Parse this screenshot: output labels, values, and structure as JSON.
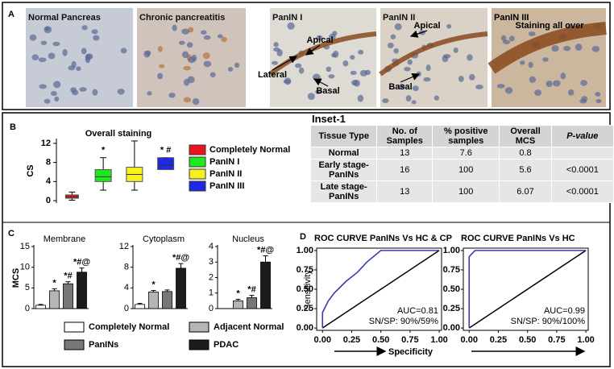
{
  "panel_labels": [
    "A",
    "B",
    "C",
    "D"
  ],
  "panel_a": {
    "images": [
      {
        "label": "Normal Pancreas"
      },
      {
        "label": "Chronic pancreatitis"
      },
      {
        "label": "PanIN I",
        "annotations": [
          "Apical",
          "Lateral",
          "Basal"
        ]
      },
      {
        "label": "PanIN II",
        "annotations": [
          "Apical",
          "Basal"
        ]
      },
      {
        "label": "PanIN III",
        "annotations": [
          "Staining all over"
        ]
      }
    ]
  },
  "table": {
    "title": "Inset-1",
    "header": [
      "Tissue Type",
      "No. of Samples",
      "% positive samples",
      "Overall MCS",
      "P-value"
    ],
    "rows": [
      [
        "Normal",
        "13",
        "7.6",
        "0.8",
        null
      ],
      [
        "Early stage-PanINs",
        "16",
        "100",
        "5.6",
        "<0.0001"
      ],
      [
        "Late stage-PanINs",
        "13",
        "100",
        "6.07",
        "<0.0001"
      ]
    ]
  },
  "chart_data": [
    {
      "type": "box",
      "title": "Overall staining",
      "ylabel": "CS",
      "categories": [
        "Completely Normal",
        "PanIN I",
        "PanIN II",
        "PanIN III"
      ],
      "colors": [
        "#e8141b",
        "#1ee81e",
        "#f5f01e",
        "#1e28e6"
      ],
      "stats": [
        {
          "min": 0.1,
          "q1": 0.5,
          "median": 0.8,
          "q3": 1.2,
          "max": 1.8
        },
        {
          "min": 2.2,
          "q1": 4,
          "median": 5,
          "q3": 6.5,
          "max": 9
        },
        {
          "min": 2.2,
          "q1": 4,
          "median": 5.5,
          "q3": 7,
          "max": 12.5
        },
        {
          "min": 6.5,
          "q1": 6.5,
          "median": 7.5,
          "q3": 9,
          "max": 9
        }
      ],
      "annotations": [
        null,
        "*",
        null,
        "* #"
      ],
      "ylim": [
        -0.5,
        13
      ],
      "yticks": [
        0,
        4,
        8,
        12
      ]
    },
    {
      "type": "bar",
      "ylabel": "MCS",
      "categories": [
        "Completely Normal",
        "Adjacent Normal",
        "PanINs",
        "PDAC"
      ],
      "colors": [
        "#ffffff",
        "#b5b5b5",
        "#777777",
        "#1c1c1c"
      ],
      "panels": [
        {
          "title": "Membrane",
          "values": [
            0.8,
            4.3,
            6,
            8.8
          ],
          "errors": [
            0.2,
            0.5,
            0.5,
            1
          ],
          "annotations": [
            null,
            "*",
            "*#",
            "*#@"
          ],
          "ylim": [
            0,
            15
          ],
          "yticks": [
            0,
            5,
            10,
            15
          ]
        },
        {
          "title": "Cytoplasm",
          "values": [
            0.8,
            3.2,
            3.3,
            7.8
          ],
          "errors": [
            0.2,
            0.3,
            0.3,
            0.9
          ],
          "annotations": [
            null,
            "*",
            null,
            "*#@"
          ],
          "ylim": [
            0,
            12
          ],
          "yticks": [
            0,
            4,
            8,
            12
          ]
        },
        {
          "title": "Nucleus",
          "values": [
            0,
            0.5,
            0.7,
            3
          ],
          "errors": [
            0,
            0.1,
            0.15,
            0.4
          ],
          "annotations": [
            null,
            "*",
            "*#",
            "*#@"
          ],
          "ylim": [
            0,
            4
          ],
          "yticks": [
            0,
            1,
            2,
            3,
            4
          ]
        }
      ]
    },
    {
      "type": "line",
      "title": "ROC CURVE PanINs Vs HC & CP",
      "ylabel": "Sensitivity",
      "xlabel": "Specificity",
      "x": [
        0,
        0,
        0.05,
        0.1,
        0.2,
        0.3,
        0.38,
        0.5,
        1
      ],
      "series": [
        {
          "color": "#3a3ab0",
          "values": [
            0,
            0.2,
            0.35,
            0.45,
            0.6,
            0.72,
            0.85,
            1,
            1
          ]
        }
      ],
      "annotations": [
        "AUC=0.81",
        "SN/SP: 90%/59%"
      ],
      "xlim": [
        -0.05,
        1.02
      ],
      "ylim": [
        -0.03,
        1.03
      ],
      "xticks": [
        {
          "value": 0,
          "label": "0.00"
        },
        {
          "value": 0.25,
          "label": "0.25"
        },
        {
          "value": 0.5,
          "label": "0.50"
        },
        {
          "value": 0.75,
          "label": "0.75"
        },
        {
          "value": 1,
          "label": "1.00"
        }
      ],
      "yticks": [
        {
          "value": 0,
          "label": "0.00"
        },
        {
          "value": 0.25,
          "label": "0.25"
        },
        {
          "value": 0.5,
          "label": "0.50"
        },
        {
          "value": 0.75,
          "label": "0.75"
        },
        {
          "value": 1,
          "label": "1.00"
        }
      ]
    },
    {
      "type": "line",
      "title": "ROC CURVE PanINs Vs HC",
      "x": [
        0,
        0,
        0.05,
        1
      ],
      "series": [
        {
          "color": "#3a3ab0",
          "values": [
            0,
            0.92,
            1,
            1
          ]
        }
      ],
      "annotations": [
        "AUC=0.99",
        "SN/SP: 90%/100%"
      ],
      "xlim": [
        -0.05,
        1.02
      ],
      "ylim": [
        -0.03,
        1.03
      ],
      "xticks": [
        {
          "value": 0,
          "label": "0.00"
        },
        {
          "value": 0.25,
          "label": "0.25"
        },
        {
          "value": 0.5,
          "label": "0.50"
        },
        {
          "value": 0.75,
          "label": "0.75"
        },
        {
          "value": 1,
          "label": "1.00"
        }
      ],
      "yticks": [
        {
          "value": 0,
          "label": "0.00"
        },
        {
          "value": 0.25,
          "label": "0.25"
        },
        {
          "value": 0.5,
          "label": "0.50"
        },
        {
          "value": 0.75,
          "label": "0.75"
        },
        {
          "value": 1,
          "label": "1.00"
        }
      ]
    }
  ]
}
